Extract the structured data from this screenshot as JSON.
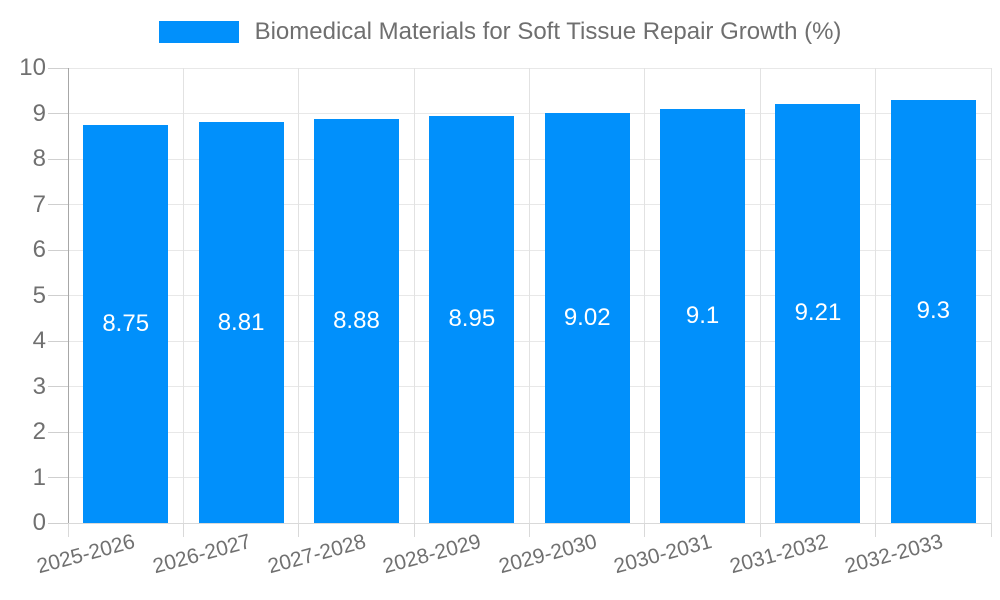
{
  "chart_data": {
    "type": "bar",
    "title": "Biomedical Materials for Soft Tissue Repair Growth (%)",
    "series_name": "Biomedical Materials for Soft Tissue Repair Growth (%)",
    "categories": [
      "2025-2026",
      "2026-2027",
      "2027-2028",
      "2028-2029",
      "2029-2030",
      "2030-2031",
      "2031-2032",
      "2032-2033"
    ],
    "values": [
      8.75,
      8.81,
      8.88,
      8.95,
      9.02,
      9.1,
      9.21,
      9.3
    ],
    "xlabel": "",
    "ylabel": "",
    "ylim": [
      0,
      10
    ],
    "yticks": [
      0,
      1,
      2,
      3,
      4,
      5,
      6,
      7,
      8,
      9,
      10
    ],
    "grid": true,
    "legend_position": "top",
    "data_labels": "inside-center"
  },
  "colors": {
    "bar": "#0190FB",
    "bar_label": "#FFFFFF",
    "grid_h": "#E8E8E8",
    "grid_v": "#E2E2E2",
    "axis_y": "#A7A7A7",
    "axis_x": "#D9D9D9",
    "tick_y": "#CFCFCF",
    "tick_x": "#D9D9D9",
    "title_text": "#6F6F6F",
    "axis_text": "#707070",
    "background": "#FFFFFF"
  }
}
